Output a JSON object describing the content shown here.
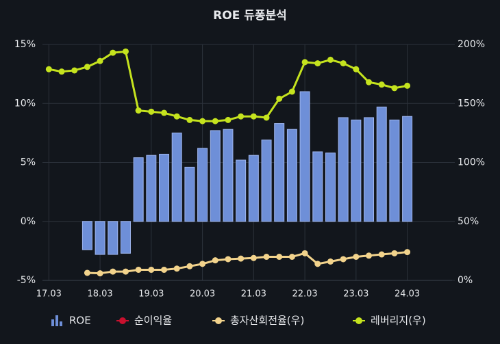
{
  "chart_data": {
    "type": "bar",
    "title": "ROE 듀퐁분석",
    "categories": [
      "17.03",
      null,
      null,
      null,
      "18.03",
      null,
      null,
      null,
      "19.03",
      null,
      null,
      null,
      "20.03",
      null,
      null,
      null,
      "21.03",
      null,
      null,
      null,
      "22.03",
      null,
      null,
      null,
      "23.03",
      null,
      null,
      null,
      "24.03",
      null,
      null,
      null
    ],
    "ylim": [
      -5,
      15
    ],
    "yticks": [
      {
        "value": -5,
        "label": "-5%"
      },
      {
        "value": 0,
        "label": "0%"
      },
      {
        "value": 5,
        "label": "5%"
      },
      {
        "value": 10,
        "label": "10%"
      },
      {
        "value": 15,
        "label": "15%"
      }
    ],
    "y2lim": [
      0,
      200
    ],
    "y2ticks": [
      {
        "value": 0,
        "label": "0%"
      },
      {
        "value": 50,
        "label": "50%"
      },
      {
        "value": 100,
        "label": "100%"
      },
      {
        "value": 150,
        "label": "150%"
      },
      {
        "value": 200,
        "label": "200%"
      }
    ],
    "grid": true,
    "legend": "bottom",
    "series": [
      {
        "name": "ROE",
        "type": "bar",
        "axis": "y",
        "color": "#6e8fd8",
        "values": [
          null,
          null,
          null,
          -2.4,
          -2.8,
          -2.8,
          -2.7,
          5.4,
          5.6,
          5.7,
          7.5,
          4.6,
          6.2,
          7.7,
          7.8,
          5.2,
          5.6,
          6.9,
          8.3,
          7.8,
          11.0,
          5.9,
          5.8,
          8.8,
          8.6,
          8.8,
          9.7,
          8.6,
          8.9,
          null,
          null,
          null
        ]
      },
      {
        "name": "순이익율",
        "type": "line",
        "axis": "y2",
        "color": "#c8102e",
        "values": [
          null,
          null,
          null,
          null,
          null,
          null,
          null,
          null,
          null,
          null,
          null,
          null,
          null,
          null,
          null,
          null,
          null,
          null,
          null,
          null,
          null,
          null,
          null,
          null,
          null,
          null,
          null,
          null,
          null,
          null,
          null,
          null
        ]
      },
      {
        "name": "총자산회전율(우)",
        "type": "line",
        "axis": "y2",
        "color": "#f2d38c",
        "values": [
          null,
          null,
          null,
          6.4,
          6,
          7.5,
          7.5,
          9,
          9,
          9,
          10,
          12,
          14,
          17,
          18,
          18.5,
          19,
          20,
          20,
          20,
          23,
          14,
          16,
          18,
          20,
          21,
          22,
          23,
          24,
          null,
          null,
          null
        ]
      },
      {
        "name": "레버리지(우)",
        "type": "line",
        "axis": "y2",
        "color": "#c5e31e",
        "values": [
          179,
          177,
          178,
          181,
          186,
          193,
          194,
          144,
          143,
          142,
          139,
          136,
          135,
          135,
          136,
          139,
          139,
          138,
          154,
          160,
          185,
          184,
          187,
          184,
          179,
          168,
          166,
          163,
          165,
          null,
          null,
          null
        ]
      }
    ]
  }
}
